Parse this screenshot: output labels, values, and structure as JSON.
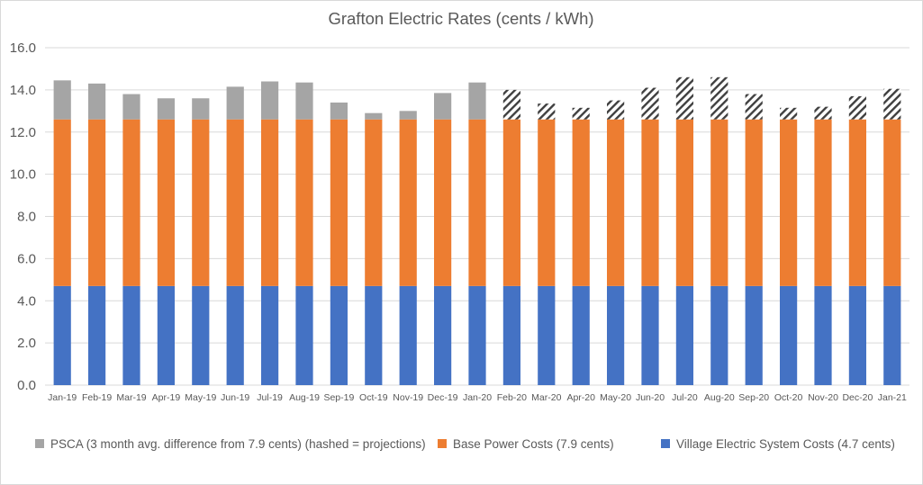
{
  "chart_data": {
    "type": "bar",
    "stacked": true,
    "title": "Grafton Electric Rates (cents / kWh)",
    "xlabel": "",
    "ylabel": "",
    "ylim": [
      0,
      16
    ],
    "yticks": [
      "0.0",
      "2.0",
      "4.0",
      "6.0",
      "8.0",
      "10.0",
      "12.0",
      "14.0",
      "16.0"
    ],
    "grid": true,
    "legend_position": "bottom",
    "categories": [
      "Jan-19",
      "Feb-19",
      "Mar-19",
      "Apr-19",
      "May-19",
      "Jun-19",
      "Jul-19",
      "Aug-19",
      "Sep-19",
      "Oct-19",
      "Nov-19",
      "Dec-19",
      "Jan-20",
      "Feb-20",
      "Mar-20",
      "Apr-20",
      "May-20",
      "Jun-20",
      "Jul-20",
      "Aug-20",
      "Sep-20",
      "Oct-20",
      "Nov-20",
      "Dec-20",
      "Jan-21"
    ],
    "series": [
      {
        "name": "Village Electric System Costs (4.7 cents)",
        "color": "#4472c4",
        "values": [
          4.7,
          4.7,
          4.7,
          4.7,
          4.7,
          4.7,
          4.7,
          4.7,
          4.7,
          4.7,
          4.7,
          4.7,
          4.7,
          4.7,
          4.7,
          4.7,
          4.7,
          4.7,
          4.7,
          4.7,
          4.7,
          4.7,
          4.7,
          4.7,
          4.7
        ]
      },
      {
        "name": "Base Power Costs (7.9 cents)",
        "color": "#ed7d31",
        "values": [
          7.9,
          7.9,
          7.9,
          7.9,
          7.9,
          7.9,
          7.9,
          7.9,
          7.9,
          7.9,
          7.9,
          7.9,
          7.9,
          7.9,
          7.9,
          7.9,
          7.9,
          7.9,
          7.9,
          7.9,
          7.9,
          7.9,
          7.9,
          7.9,
          7.9
        ]
      },
      {
        "name": "PSCA (3 month avg. difference from 7.9 cents) (hashed = projections)",
        "color": "#a5a5a5",
        "values": [
          1.85,
          1.7,
          1.2,
          1.0,
          1.0,
          1.55,
          1.8,
          1.75,
          0.8,
          0.3,
          0.4,
          1.25,
          1.75,
          1.4,
          0.75,
          0.55,
          0.9,
          1.5,
          2.0,
          2.0,
          1.2,
          0.55,
          0.6,
          1.1,
          1.45
        ],
        "projected": [
          false,
          false,
          false,
          false,
          false,
          false,
          false,
          false,
          false,
          false,
          false,
          false,
          false,
          true,
          true,
          true,
          true,
          true,
          true,
          true,
          true,
          true,
          true,
          true,
          true
        ]
      }
    ],
    "legend_order": [
      2,
      1,
      0
    ]
  }
}
